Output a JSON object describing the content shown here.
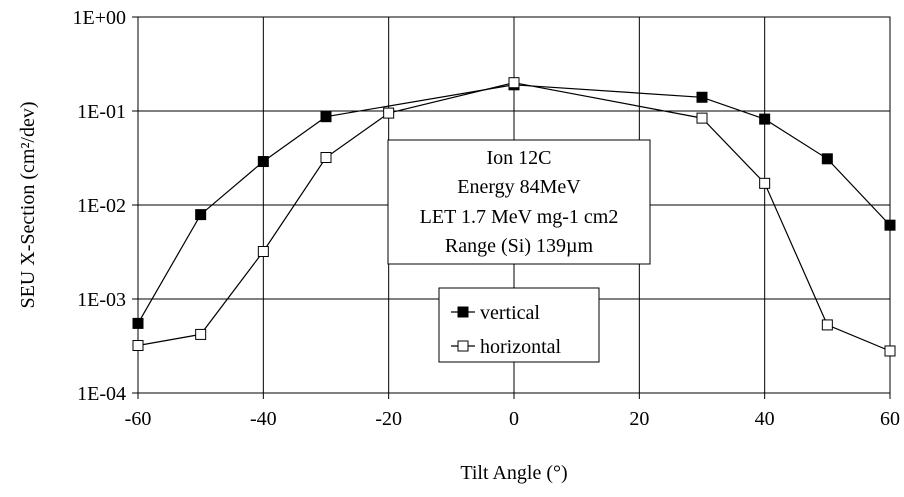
{
  "chart_data": {
    "type": "line",
    "xlabel": "Tilt Angle (°)",
    "ylabel": "SEU X-Section (cm²/dev)",
    "xlim": [
      -60,
      60
    ],
    "ylim": [
      0.0001,
      1
    ],
    "yscale": "log",
    "grid": true,
    "x_ticks": [
      -60,
      -40,
      -20,
      0,
      20,
      40,
      60
    ],
    "x_tick_labels": [
      "-60",
      "-40",
      "-20",
      "0",
      "20",
      "40",
      "60"
    ],
    "y_ticks": [
      1,
      0.1,
      0.01,
      0.001,
      0.0001
    ],
    "y_tick_labels": [
      "1E+00",
      "1E-01",
      "1E-02",
      "1E-03",
      "1E-04"
    ],
    "series": [
      {
        "name": "vertical",
        "marker": "filled-square",
        "x": [
          -60,
          -50,
          -40,
          -30,
          0,
          30,
          40,
          50,
          60
        ],
        "y": [
          0.00055,
          0.0079,
          0.029,
          0.087,
          0.19,
          0.14,
          0.082,
          0.031,
          0.0061
        ]
      },
      {
        "name": "horizontal",
        "marker": "open-square",
        "x": [
          -60,
          -50,
          -40,
          -30,
          -20,
          0,
          30,
          40,
          50,
          60
        ],
        "y": [
          0.00032,
          0.00042,
          0.0032,
          0.032,
          0.095,
          0.2,
          0.084,
          0.017,
          0.00053,
          0.00028
        ]
      }
    ],
    "annotation": [
      "Ion 12C",
      "Energy 84MeV",
      "LET 1.7 MeV mg-1 cm2",
      "Range (Si) 139µm"
    ],
    "legend_position": "center-bottom"
  }
}
